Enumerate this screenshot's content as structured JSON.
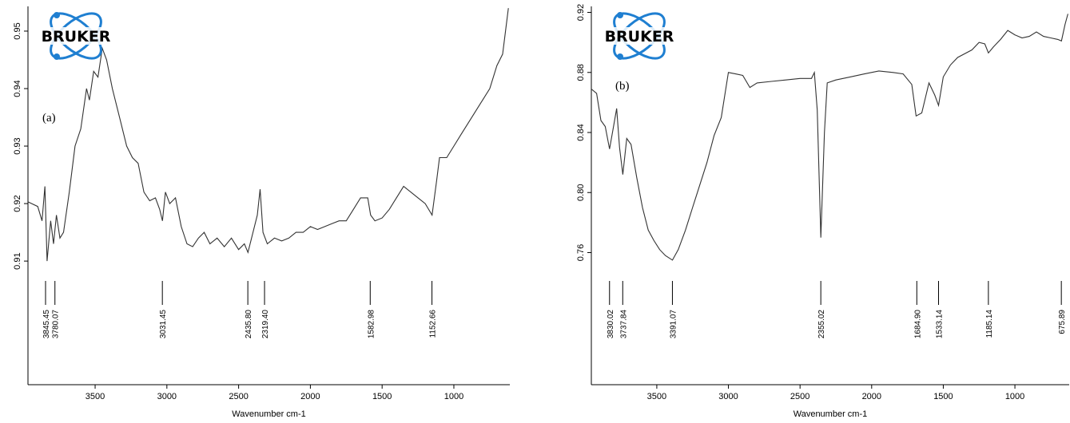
{
  "chart_data": [
    {
      "type": "line",
      "panel_label": "(a)",
      "logo": "BRUKER",
      "xlabel": "Wavenumber cm-1",
      "color": "#333333",
      "xlim": [
        3968,
        610
      ],
      "ylim": [
        0.8885,
        0.9543
      ],
      "xticks": [
        3500,
        3000,
        2500,
        2000,
        1500,
        1000
      ],
      "yticks": [
        0.91,
        0.92,
        0.93,
        0.94,
        0.95
      ],
      "x": [
        3968,
        3900,
        3870,
        3850,
        3835,
        3810,
        3790,
        3770,
        3745,
        3720,
        3680,
        3640,
        3600,
        3560,
        3540,
        3510,
        3480,
        3450,
        3420,
        3380,
        3330,
        3280,
        3240,
        3200,
        3160,
        3120,
        3080,
        3050,
        3031,
        3010,
        2980,
        2940,
        2900,
        2860,
        2820,
        2780,
        2740,
        2700,
        2650,
        2600,
        2550,
        2500,
        2460,
        2435,
        2400,
        2370,
        2350,
        2330,
        2300,
        2250,
        2200,
        2150,
        2100,
        2050,
        2000,
        1950,
        1900,
        1850,
        1800,
        1750,
        1700,
        1650,
        1600,
        1580,
        1550,
        1500,
        1450,
        1400,
        1350,
        1300,
        1250,
        1200,
        1152,
        1120,
        1100,
        1050,
        1000,
        950,
        900,
        850,
        800,
        750,
        700,
        660,
        640,
        620
      ],
      "values": [
        0.9203,
        0.9195,
        0.917,
        0.923,
        0.91,
        0.917,
        0.913,
        0.918,
        0.914,
        0.915,
        0.922,
        0.93,
        0.933,
        0.94,
        0.938,
        0.943,
        0.942,
        0.947,
        0.945,
        0.94,
        0.935,
        0.93,
        0.928,
        0.927,
        0.922,
        0.9205,
        0.921,
        0.919,
        0.917,
        0.922,
        0.92,
        0.921,
        0.916,
        0.913,
        0.9125,
        0.914,
        0.915,
        0.913,
        0.914,
        0.9125,
        0.914,
        0.912,
        0.913,
        0.9115,
        0.915,
        0.918,
        0.9225,
        0.915,
        0.913,
        0.914,
        0.9135,
        0.914,
        0.915,
        0.915,
        0.916,
        0.9155,
        0.916,
        0.9165,
        0.917,
        0.917,
        0.919,
        0.921,
        0.921,
        0.918,
        0.917,
        0.9175,
        0.919,
        0.921,
        0.923,
        0.922,
        0.921,
        0.92,
        0.918,
        0.924,
        0.928,
        0.928,
        0.93,
        0.932,
        0.934,
        0.936,
        0.938,
        0.94,
        0.944,
        0.946,
        0.95,
        0.954
      ],
      "peaks": [
        {
          "value": 3845.45,
          "label": "3845.45"
        },
        {
          "value": 3780.07,
          "label": "3780.07"
        },
        {
          "value": 3031.45,
          "label": "3031.45"
        },
        {
          "value": 2435.8,
          "label": "2435.80"
        },
        {
          "value": 2319.4,
          "label": "2319.40"
        },
        {
          "value": 1582.98,
          "label": "1582.98"
        },
        {
          "value": 1152.66,
          "label": "1152.66"
        }
      ]
    },
    {
      "type": "line",
      "panel_label": "(b)",
      "logo": "BRUKER",
      "xlabel": "Wavenumber cm-1",
      "color": "#333333",
      "xlim": [
        3957,
        621
      ],
      "ylim": [
        0.672,
        0.924
      ],
      "xticks": [
        3500,
        3000,
        2500,
        2000,
        1500,
        1000
      ],
      "yticks": [
        0.76,
        {
          "value": 0.8,
          "label": "0.80"
        },
        0.84,
        0.88,
        0.92
      ],
      "x": [
        3957,
        3920,
        3890,
        3860,
        3830,
        3800,
        3780,
        3760,
        3737,
        3710,
        3680,
        3640,
        3600,
        3560,
        3520,
        3480,
        3440,
        3391,
        3350,
        3300,
        3250,
        3200,
        3150,
        3100,
        3050,
        3000,
        2950,
        2900,
        2850,
        2800,
        2700,
        2600,
        2500,
        2420,
        2400,
        2380,
        2355,
        2330,
        2310,
        2250,
        2150,
        2050,
        1950,
        1850,
        1780,
        1720,
        1690,
        1650,
        1600,
        1560,
        1533,
        1500,
        1450,
        1400,
        1300,
        1250,
        1210,
        1185,
        1150,
        1100,
        1050,
        1000,
        950,
        900,
        850,
        800,
        750,
        700,
        675,
        650,
        630
      ],
      "values": [
        0.869,
        0.866,
        0.848,
        0.844,
        0.829,
        0.845,
        0.856,
        0.83,
        0.812,
        0.836,
        0.832,
        0.81,
        0.79,
        0.775,
        0.768,
        0.762,
        0.758,
        0.755,
        0.762,
        0.775,
        0.79,
        0.805,
        0.82,
        0.838,
        0.85,
        0.88,
        0.879,
        0.878,
        0.87,
        0.873,
        0.874,
        0.875,
        0.876,
        0.876,
        0.88,
        0.855,
        0.77,
        0.84,
        0.873,
        0.875,
        0.877,
        0.879,
        0.881,
        0.88,
        0.879,
        0.872,
        0.851,
        0.853,
        0.873,
        0.865,
        0.858,
        0.877,
        0.885,
        0.89,
        0.895,
        0.9,
        0.899,
        0.893,
        0.897,
        0.902,
        0.908,
        0.905,
        0.903,
        0.904,
        0.907,
        0.904,
        0.903,
        0.902,
        0.901,
        0.912,
        0.919
      ],
      "peaks": [
        {
          "value": 3830.02,
          "label": "3830.02"
        },
        {
          "value": 3737.84,
          "label": "3737.84"
        },
        {
          "value": 3391.07,
          "label": "3391.07"
        },
        {
          "value": 2355.02,
          "label": "2355.02"
        },
        {
          "value": 1684.9,
          "label": "1684.90"
        },
        {
          "value": 1533.14,
          "label": "1533.14"
        },
        {
          "value": 1185.14,
          "label": "1185.14"
        },
        {
          "value": 675.89,
          "label": "675.89"
        }
      ]
    }
  ]
}
